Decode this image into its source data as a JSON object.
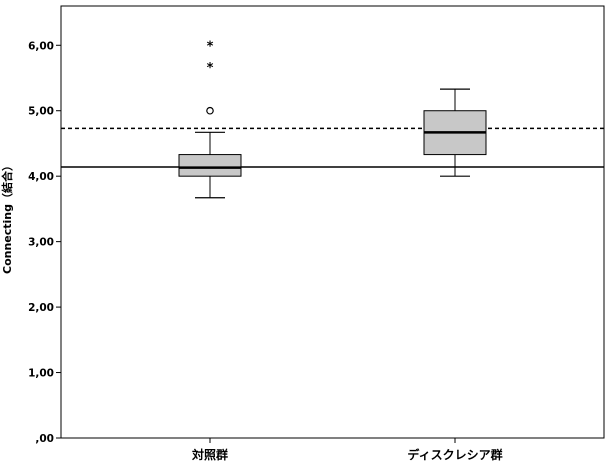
{
  "chart_data": {
    "type": "boxplot",
    "ylabel": "Connecting（結合）",
    "ylim": [
      0,
      6.6
    ],
    "yticks": [
      {
        "value": 0,
        "label": ",00"
      },
      {
        "value": 1,
        "label": "1,00"
      },
      {
        "value": 2,
        "label": "2,00"
      },
      {
        "value": 3,
        "label": "3,00"
      },
      {
        "value": 4,
        "label": "4,00"
      },
      {
        "value": 5,
        "label": "5,00"
      },
      {
        "value": 6,
        "label": "6,00"
      }
    ],
    "categories": [
      "対照群",
      "ディスクレシア群"
    ],
    "boxes": [
      {
        "category": "対照群",
        "whisker_low": 3.67,
        "q1": 4.0,
        "median": 4.13,
        "q3": 4.33,
        "whisker_high": 4.67,
        "outliers": [
          5.0
        ],
        "extremes": [
          5.67,
          6.0
        ]
      },
      {
        "category": "ディスクレシア群",
        "whisker_low": 4.0,
        "q1": 4.33,
        "median": 4.67,
        "q3": 5.0,
        "whisker_high": 5.33,
        "outliers": [],
        "extremes": []
      }
    ],
    "reference_lines": [
      {
        "style": "solid",
        "value": 4.14
      },
      {
        "style": "dashed",
        "value": 4.73
      }
    ],
    "grid": false,
    "box_color": "#c8c8c8",
    "line_color": "#000000"
  }
}
